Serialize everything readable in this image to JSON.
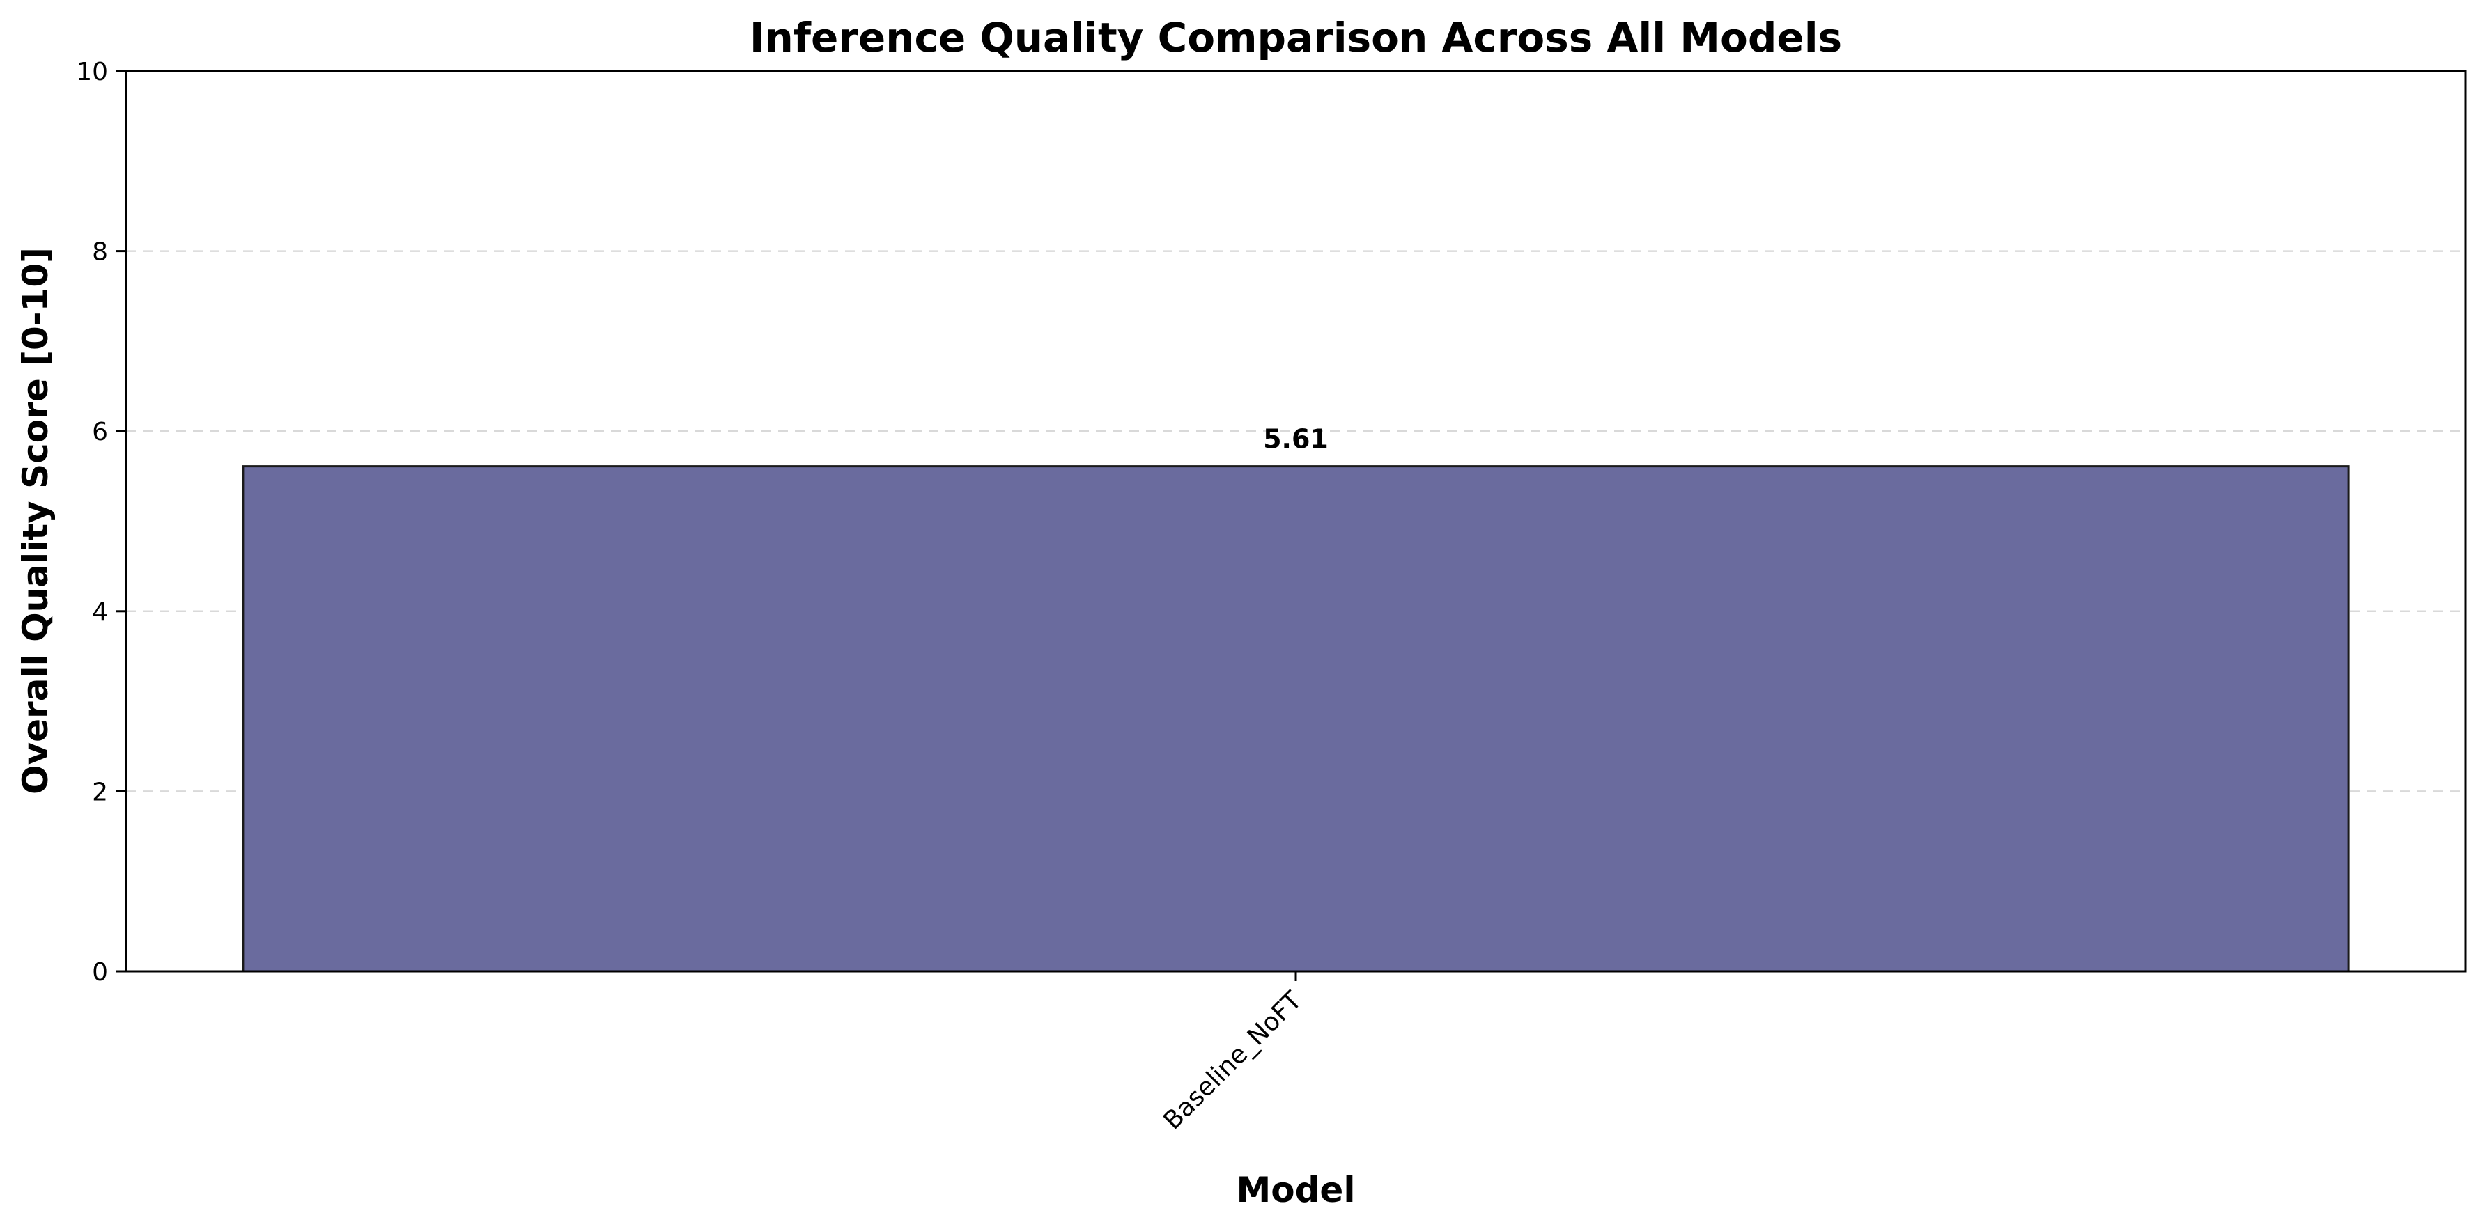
{
  "chart_data": {
    "type": "bar",
    "title": "Inference Quality Comparison Across All Models",
    "xlabel": "Model",
    "ylabel": "Overall Quality Score [0-10]",
    "categories": [
      "Baseline_NoFT"
    ],
    "series": [
      {
        "values": [
          5.61
        ],
        "value_labels": [
          "5.61"
        ],
        "color": "#6a6b9e"
      }
    ],
    "ylim": [
      0,
      10
    ],
    "yticks": [
      0,
      2,
      4,
      6,
      8,
      10
    ],
    "ytick_labels": [
      "0",
      "2",
      "4",
      "6",
      "8",
      "10"
    ],
    "grid": "y-dashed",
    "legend": "none"
  }
}
